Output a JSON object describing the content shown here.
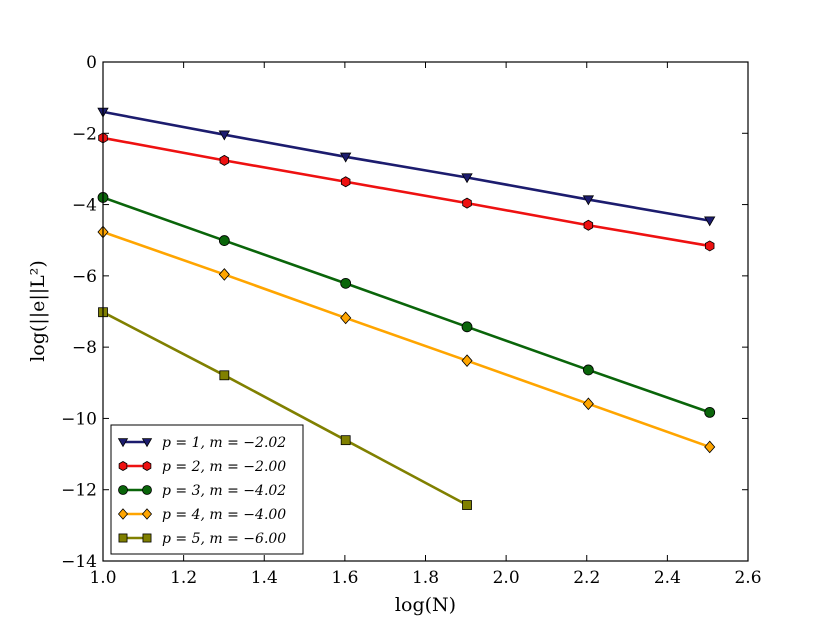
{
  "chart_data": {
    "type": "line",
    "title": "",
    "xlabel": "log(N)",
    "ylabel": "log(||e||L²)",
    "xlim": [
      1.0,
      2.6
    ],
    "ylim": [
      -14,
      0
    ],
    "xticks": [
      1.0,
      1.2,
      1.4,
      1.6,
      1.8,
      2.0,
      2.2,
      2.4,
      2.6
    ],
    "xtick_labels": [
      "1.0",
      "1.2",
      "1.4",
      "1.6",
      "1.8",
      "2.0",
      "2.2",
      "2.4",
      "2.6"
    ],
    "yticks": [
      0,
      -2,
      -4,
      -6,
      -8,
      -10,
      -12,
      -14
    ],
    "ytick_labels": [
      "0",
      "−2",
      "−4",
      "−6",
      "−8",
      "−10",
      "−12",
      "−14"
    ],
    "grid": false,
    "legend_position": "bottom-left",
    "series": [
      {
        "name": "p = 1, m = −2.02",
        "color": "#1c1c6e",
        "marker": "triangle-down",
        "x": [
          1.0,
          1.301,
          1.602,
          1.903,
          2.204,
          2.505
        ],
        "y": [
          -1.4,
          -2.04,
          -2.66,
          -3.24,
          -3.86,
          -4.45
        ]
      },
      {
        "name": "p = 2, m = −2.00",
        "color": "#ee1111",
        "marker": "hexagon",
        "x": [
          1.0,
          1.301,
          1.602,
          1.903,
          2.204,
          2.505
        ],
        "y": [
          -2.13,
          -2.76,
          -3.36,
          -3.96,
          -4.58,
          -5.16
        ]
      },
      {
        "name": "p = 3, m = −4.02",
        "color": "#0a650a",
        "marker": "circle",
        "x": [
          1.0,
          1.301,
          1.602,
          1.903,
          2.204,
          2.505
        ],
        "y": [
          -3.8,
          -5.01,
          -6.21,
          -7.43,
          -8.64,
          -9.83
        ]
      },
      {
        "name": "p = 4, m = −4.00",
        "color": "#ffa500",
        "marker": "diamond",
        "x": [
          1.0,
          1.301,
          1.602,
          1.903,
          2.204,
          2.505
        ],
        "y": [
          -4.77,
          -5.96,
          -7.18,
          -8.38,
          -9.59,
          -10.8
        ]
      },
      {
        "name": "p = 5, m = −6.00",
        "color": "#808000",
        "marker": "square",
        "x": [
          1.0,
          1.301,
          1.602,
          1.903
        ],
        "y": [
          -7.02,
          -8.79,
          -10.61,
          -12.43
        ]
      }
    ]
  }
}
